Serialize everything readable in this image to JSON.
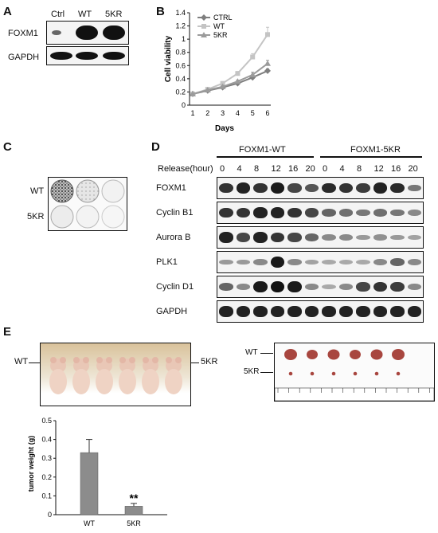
{
  "panel_letters": [
    "A",
    "B",
    "C",
    "D",
    "E"
  ],
  "panelA": {
    "columns": [
      "Ctrl",
      "WT",
      "5KR"
    ],
    "rows": [
      "FOXM1",
      "GAPDH"
    ]
  },
  "panelB": {
    "chart_data": {
      "type": "line",
      "xlabel": "Days",
      "ylabel": "Cell viability",
      "x": [
        1,
        2,
        3,
        4,
        5,
        6
      ],
      "xlim": [
        1,
        6
      ],
      "ylim": [
        0,
        1.4
      ],
      "yticks": [
        "0",
        "0.2",
        "0.4",
        "0.6",
        "0.8",
        "1",
        "1.2",
        "1.4"
      ],
      "legend_position": "top-left",
      "series": [
        {
          "name": "CTRL",
          "marker": "diamond",
          "color": "#7f7f7f",
          "values": [
            0.17,
            0.22,
            0.27,
            0.33,
            0.42,
            0.52
          ],
          "errors": [
            0.01,
            0.01,
            0.01,
            0.02,
            0.03,
            0.03
          ]
        },
        {
          "name": "WT",
          "marker": "square",
          "color": "#c4c4c4",
          "values": [
            0.17,
            0.24,
            0.33,
            0.48,
            0.73,
            1.07
          ],
          "errors": [
            0.01,
            0.02,
            0.02,
            0.03,
            0.05,
            0.11
          ]
        },
        {
          "name": "5KR",
          "marker": "triangle",
          "color": "#9b9b9b",
          "values": [
            0.17,
            0.23,
            0.28,
            0.36,
            0.46,
            0.63
          ],
          "errors": [
            0.01,
            0.01,
            0.02,
            0.02,
            0.04,
            0.05
          ]
        }
      ]
    }
  },
  "panelC": {
    "rows": [
      "WT",
      "5KR"
    ]
  },
  "panelD": {
    "groups": [
      "FOXM1-WT",
      "FOXM1-5KR"
    ],
    "release_label": "Release(hour)",
    "timepoints": [
      "0",
      "4",
      "8",
      "12",
      "16",
      "20",
      "0",
      "4",
      "8",
      "12",
      "16",
      "20"
    ],
    "rows": [
      "FOXM1",
      "Cyclin B1",
      "Aurora B",
      "PLK1",
      "Cyclin D1",
      "GAPDH"
    ]
  },
  "panelE": {
    "mice_labels": {
      "left": "WT",
      "right": "5KR"
    },
    "tumor_labels": {
      "top": "WT",
      "bottom": "5KR"
    },
    "chart_data": {
      "type": "bar",
      "categories": [
        "WT",
        "5KR"
      ],
      "values": [
        0.33,
        0.045
      ],
      "errors": [
        0.07,
        0.015
      ],
      "ylabel": "tumor weight (g)",
      "ylim": [
        0,
        0.5
      ],
      "yticks": [
        "0",
        "0.1",
        "0.2",
        "0.3",
        "0.4",
        "0.5"
      ],
      "annotations": [
        {
          "category": "5KR",
          "text": "**"
        }
      ],
      "bar_color": "#8c8c8c"
    }
  }
}
